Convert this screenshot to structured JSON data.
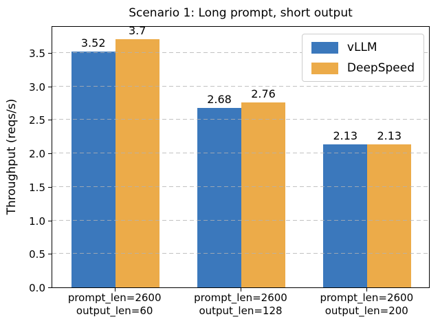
{
  "chart_data": {
    "type": "bar",
    "title": "Scenario 1: Long prompt, short output",
    "ylabel": "Throughput (reqs/s)",
    "xlabel": "",
    "categories": [
      [
        "prompt_len=2600",
        "output_len=60"
      ],
      [
        "prompt_len=2600",
        "output_len=128"
      ],
      [
        "prompt_len=2600",
        "output_len=200"
      ]
    ],
    "series": [
      {
        "name": "vLLM",
        "color": "#3b78bc",
        "values": [
          3.52,
          2.68,
          2.13
        ],
        "labels": [
          "3.52",
          "2.68",
          "2.13"
        ]
      },
      {
        "name": "DeepSpeed",
        "color": "#ecab49",
        "values": [
          3.7,
          2.76,
          2.13
        ],
        "labels": [
          "3.7",
          "2.76",
          "2.13"
        ]
      }
    ],
    "yticks": [
      "0.0",
      "0.5",
      "1.0",
      "1.5",
      "2.0",
      "2.5",
      "3.0",
      "3.5"
    ],
    "ylim": [
      0,
      3.91
    ],
    "grid": {
      "axis": "y",
      "style": "dashed",
      "color": "#b2b2b2",
      "over_bars": true
    },
    "legend": {
      "position": "upper right"
    },
    "bar_value_labels": true
  }
}
